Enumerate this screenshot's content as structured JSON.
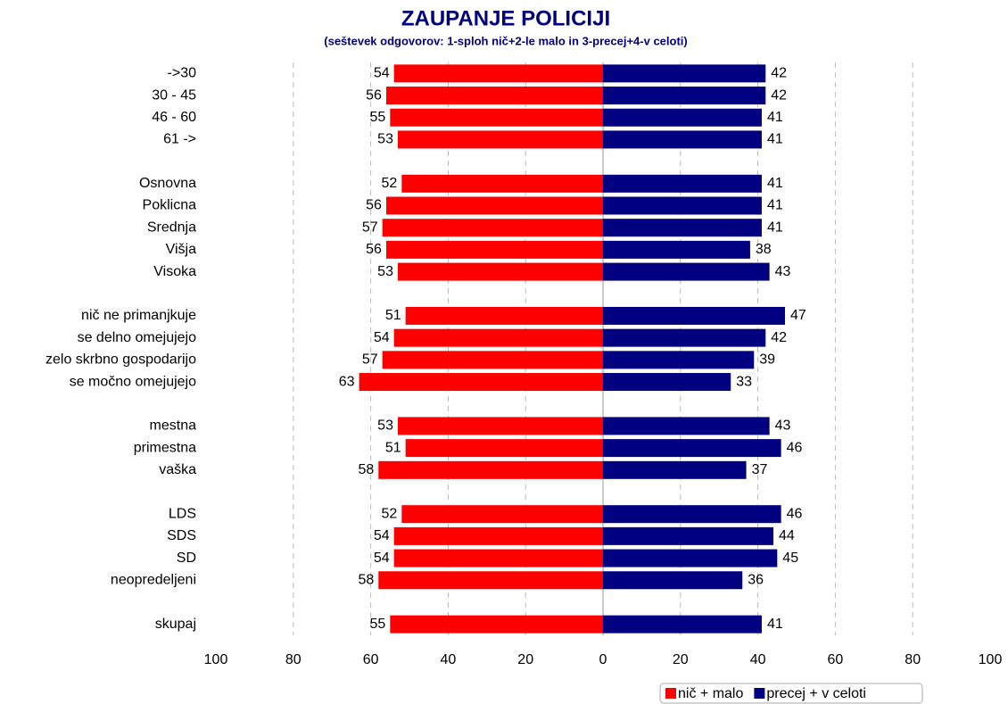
{
  "chart_data": {
    "type": "diverging_bar",
    "title": "ZAUPANJE POLICIJI",
    "subtitle": "(seštevek odgovorov: 1-sploh nič+2-le malo in 3-precej+4-v celoti)",
    "categories": [
      "->30",
      "30 - 45",
      "46 - 60",
      "61 ->",
      null,
      "Osnovna",
      "Poklicna",
      "Srednja",
      "Višja",
      "Visoka",
      null,
      "nič ne primanjkuje",
      "se delno omejujejo",
      "zelo skrbno gospodarijo",
      "se močno omejujejo",
      null,
      "mestna",
      "primestna",
      "vaška",
      null,
      "LDS",
      "SDS",
      "SD",
      "neopredeljeni",
      null,
      "skupaj"
    ],
    "series": [
      {
        "name": "nič + malo",
        "color": "#ff0000",
        "values": [
          -54,
          -56,
          -55,
          -53,
          null,
          -52,
          -56,
          -57,
          -56,
          -53,
          null,
          -51,
          -54,
          -57,
          -63,
          null,
          -53,
          -51,
          -58,
          null,
          -52,
          -54,
          -54,
          -58,
          null,
          -55
        ],
        "value_labels": [
          "54",
          "56",
          "55",
          "53",
          null,
          "52",
          "56",
          "57",
          "56",
          "53",
          null,
          "51",
          "54",
          "57",
          "63",
          null,
          "53",
          "51",
          "58",
          null,
          "52",
          "54",
          "54",
          "58",
          null,
          "55"
        ]
      },
      {
        "name": "precej + v celoti",
        "color": "#000080",
        "values": [
          42,
          42,
          41,
          41,
          null,
          41,
          41,
          41,
          38,
          43,
          null,
          47,
          42,
          39,
          33,
          null,
          43,
          46,
          37,
          null,
          46,
          44,
          45,
          36,
          null,
          41
        ]
      }
    ],
    "xlim": [
      -100,
      100
    ],
    "xticks": [
      {
        "value": -100,
        "label": "100"
      },
      {
        "value": -80,
        "label": "80"
      },
      {
        "value": -60,
        "label": "60"
      },
      {
        "value": -40,
        "label": "40"
      },
      {
        "value": -20,
        "label": "20"
      },
      0,
      20,
      40,
      60,
      80,
      100
    ],
    "grid": true
  }
}
